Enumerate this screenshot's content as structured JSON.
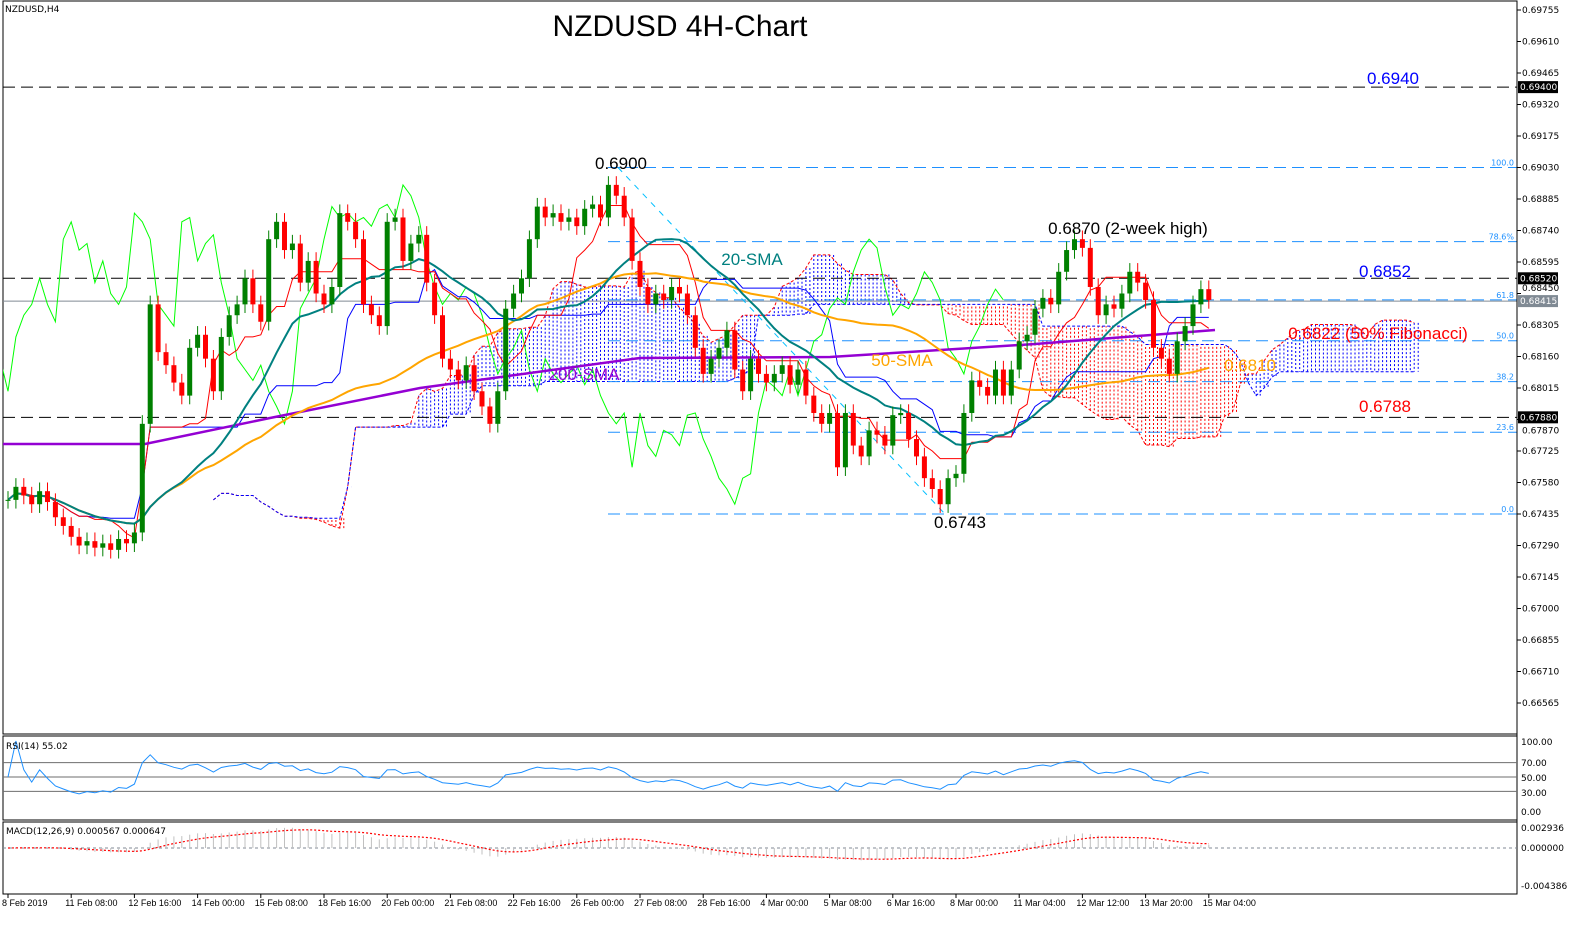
{
  "window": {
    "symbol_label": "NZDUSD,H4"
  },
  "chart_data": {
    "type": "candlestick",
    "title": "NZDUSD 4H-Chart",
    "symbol": "NZDUSD",
    "timeframe": "H4",
    "ylim": [
      0.665,
      0.698
    ],
    "price_ticks": [
      "0.69755",
      "0.69610",
      "0.69465",
      "0.69320",
      "0.69175",
      "0.69030",
      "0.68885",
      "0.68740",
      "0.68595",
      "0.68450",
      "0.68305",
      "0.68160",
      "0.68015",
      "0.67870",
      "0.67725",
      "0.67580",
      "0.67435",
      "0.67290",
      "0.67145",
      "0.67000",
      "0.66855",
      "0.66710",
      "0.66565"
    ],
    "price_markers": [
      {
        "label": "0.69400",
        "value": 0.694,
        "color": "#000000"
      },
      {
        "label": "0.68520",
        "value": 0.6852,
        "color": "#000000"
      },
      {
        "label": "0.68415",
        "value": 0.68415,
        "color": "#808a94"
      },
      {
        "label": "0.67880",
        "value": 0.6788,
        "color": "#000000"
      }
    ],
    "horizontal_levels": [
      0.694,
      0.6852,
      0.6788
    ],
    "current_price": 0.68415,
    "fibonacci": {
      "high": 0.6903,
      "low": 0.67435,
      "levels": [
        {
          "label": "100.0",
          "ratio": 1.0
        },
        {
          "label": "78.6%",
          "ratio": 0.786
        },
        {
          "label": "61.8",
          "ratio": 0.618
        },
        {
          "label": "50.0",
          "ratio": 0.5
        },
        {
          "label": "38.2",
          "ratio": 0.382
        },
        {
          "label": "23.6",
          "ratio": 0.236
        },
        {
          "label": "0.0",
          "ratio": 0.0
        }
      ]
    },
    "x_tick_labels": [
      "8 Feb 2019",
      "11 Feb 08:00",
      "12 Feb 16:00",
      "14 Feb 00:00",
      "15 Feb 08:00",
      "18 Feb 16:00",
      "20 Feb 00:00",
      "21 Feb 08:00",
      "22 Feb 16:00",
      "26 Feb 00:00",
      "27 Feb 08:00",
      "28 Feb 16:00",
      "4 Mar 00:00",
      "5 Mar 08:00",
      "6 Mar 16:00",
      "8 Mar 00:00",
      "11 Mar 04:00",
      "12 Mar 12:00",
      "13 Mar 20:00",
      "15 Mar 04:00"
    ],
    "closes": [
      0.675,
      0.6756,
      0.6752,
      0.6748,
      0.6754,
      0.6749,
      0.6742,
      0.6738,
      0.6733,
      0.6729,
      0.6731,
      0.6728,
      0.673,
      0.6727,
      0.6732,
      0.673,
      0.6735,
      0.6785,
      0.684,
      0.6818,
      0.6812,
      0.6804,
      0.6798,
      0.682,
      0.6826,
      0.6815,
      0.68,
      0.6825,
      0.6835,
      0.684,
      0.6852,
      0.684,
      0.6832,
      0.687,
      0.6878,
      0.6865,
      0.6868,
      0.685,
      0.686,
      0.6845,
      0.684,
      0.6848,
      0.6882,
      0.6878,
      0.687,
      0.684,
      0.6835,
      0.683,
      0.6878,
      0.688,
      0.686,
      0.6868,
      0.6872,
      0.685,
      0.6835,
      0.6815,
      0.681,
      0.6805,
      0.6812,
      0.68,
      0.6793,
      0.6785,
      0.68,
      0.6838,
      0.6845,
      0.6852,
      0.687,
      0.6885,
      0.688,
      0.6882,
      0.6878,
      0.688,
      0.6876,
      0.6884,
      0.6886,
      0.688,
      0.6895,
      0.689,
      0.688,
      0.686,
      0.6848,
      0.684,
      0.6845,
      0.6842,
      0.6848,
      0.6845,
      0.6835,
      0.682,
      0.6808,
      0.6815,
      0.682,
      0.6828,
      0.681,
      0.68,
      0.6815,
      0.6808,
      0.6804,
      0.6808,
      0.6812,
      0.6803,
      0.681,
      0.6798,
      0.679,
      0.6785,
      0.679,
      0.6765,
      0.679,
      0.6775,
      0.677,
      0.6782,
      0.678,
      0.6775,
      0.6789,
      0.679,
      0.6778,
      0.677,
      0.676,
      0.6755,
      0.6748,
      0.676,
      0.6762,
      0.679,
      0.6805,
      0.6802,
      0.6798,
      0.681,
      0.6798,
      0.681,
      0.6823,
      0.6826,
      0.6838,
      0.6843,
      0.684,
      0.6855,
      0.6865,
      0.687,
      0.6866,
      0.6848,
      0.6835,
      0.684,
      0.6838,
      0.6845,
      0.6855,
      0.685,
      0.6842,
      0.682,
      0.6815,
      0.6808,
      0.6823,
      0.683,
      0.684,
      0.6847,
      0.6842
    ],
    "colors": {
      "up": "#008000",
      "down": "#ff0000",
      "sma20": "#008080",
      "sma50": "#ffa500",
      "sma200": "#9400d3",
      "tenkan": "#ff0000",
      "kijun": "#0000ff",
      "chikou": "#00ff00",
      "cloud_bull": "#0000ff",
      "cloud_bear": "#ff0000",
      "fib": "#1e90ff",
      "rsi": "#1e90ff",
      "macd_signal": "#ff0000",
      "macd_hist": "#c0c0c0"
    },
    "annotations": [
      {
        "text": "0.6940",
        "color": "#0000ff"
      },
      {
        "text": "0.6900",
        "color": "#000000"
      },
      {
        "text": "0.6870 (2-week high)",
        "color": "#000000"
      },
      {
        "text": "20-SMA",
        "color": "#008080"
      },
      {
        "text": "0.6852",
        "color": "#0000ff"
      },
      {
        "text": "0.6822 (50% Fibonacci)",
        "color": "#ff0000"
      },
      {
        "text": "50-SMA",
        "color": "#ffa500"
      },
      {
        "text": "0.6810",
        "color": "#ffa500"
      },
      {
        "text": "200-SMA",
        "color": "#9400d3"
      },
      {
        "text": "0.6788",
        "color": "#ff0000"
      },
      {
        "text": "0.6743",
        "color": "#000000"
      }
    ],
    "rsi": {
      "label": "RSI(14) 55.02",
      "levels": [
        70,
        50,
        30
      ],
      "ticks": [
        "100.00",
        "70.00",
        "50.00",
        "30.00",
        "0.00"
      ]
    },
    "macd": {
      "label": "MACD(12,26,9) 0.000567 0.000647",
      "ticks": [
        "0.002936",
        "0.000000",
        "-0.004386"
      ]
    }
  }
}
